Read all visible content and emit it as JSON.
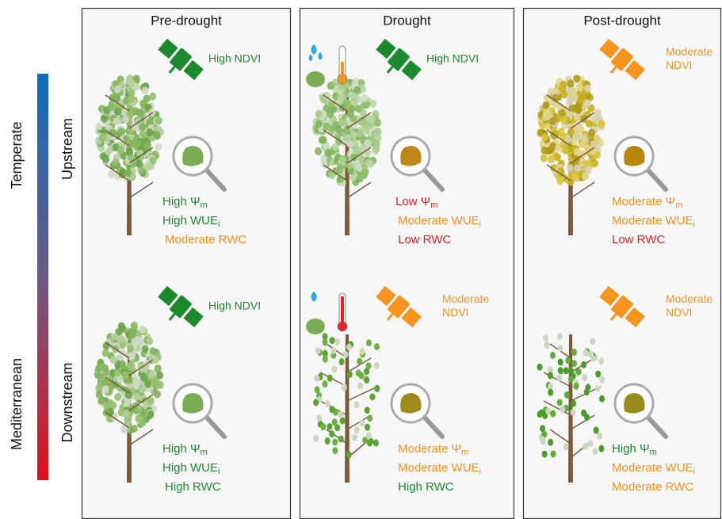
{
  "climate_labels": [
    "Temperate",
    "Mediterranean"
  ],
  "row_labels": [
    "Upstream",
    "Downstream"
  ],
  "panels": [
    {
      "title": "Pre-drought",
      "cells": [
        {
          "ndvi": {
            "lines": [
              "High NDVI"
            ],
            "color": "#1b8a2c"
          },
          "traits": [
            {
              "text": "High Ψ",
              "sub": "m",
              "color": "#1b8a2c"
            },
            {
              "text": "High WUE",
              "sub": "i",
              "color": "#1b8a2c"
            },
            {
              "text": "Moderate RWC",
              "color": "#f7941d"
            }
          ]
        },
        {
          "ndvi": {
            "lines": [
              "High NDVI"
            ],
            "color": "#1b8a2c"
          },
          "traits": [
            {
              "text": "High Ψ",
              "sub": "m",
              "color": "#1b8a2c"
            },
            {
              "text": "High WUE",
              "sub": "i",
              "color": "#1b8a2c"
            },
            {
              "text": "High RWC",
              "color": "#1b8a2c"
            }
          ]
        }
      ]
    },
    {
      "title": "Drought",
      "cells": [
        {
          "ndvi": {
            "lines": [
              "High NDVI"
            ],
            "color": "#1b8a2c"
          },
          "traits": [
            {
              "text": "Low Ψ",
              "sub": "m",
              "color": "#e8202a"
            },
            {
              "text": "Moderate WUE",
              "sub": "i",
              "color": "#f7941d"
            },
            {
              "text": "Low RWC",
              "color": "#e8202a"
            }
          ]
        },
        {
          "ndvi": {
            "lines": [
              "Moderate",
              "NDVI"
            ],
            "color": "#f7941d"
          },
          "traits": [
            {
              "text": "Moderate Ψ",
              "sub": "m",
              "color": "#f7941d"
            },
            {
              "text": "Moderate WUE",
              "sub": "i",
              "color": "#f7941d"
            },
            {
              "text": "High RWC",
              "color": "#1b8a2c"
            }
          ]
        }
      ]
    },
    {
      "title": "Post-drought",
      "cells": [
        {
          "ndvi": {
            "lines": [
              "Moderate",
              "NDVI"
            ],
            "color": "#f7941d"
          },
          "traits": [
            {
              "text": "Moderate Ψ",
              "sub": "m",
              "color": "#f7941d"
            },
            {
              "text": "Moderate WUE",
              "sub": "i",
              "color": "#f7941d"
            },
            {
              "text": "Low RWC",
              "color": "#e8202a"
            }
          ]
        },
        {
          "ndvi": {
            "lines": [
              "Moderate",
              "NDVI"
            ],
            "color": "#f7941d"
          },
          "traits": [
            {
              "text": "High Ψ",
              "sub": "m",
              "color": "#1b8a2c"
            },
            {
              "text": "Moderate WUE",
              "sub": "i",
              "color": "#f7941d"
            },
            {
              "text": "Moderate RWC",
              "color": "#f7941d"
            }
          ]
        }
      ]
    }
  ]
}
